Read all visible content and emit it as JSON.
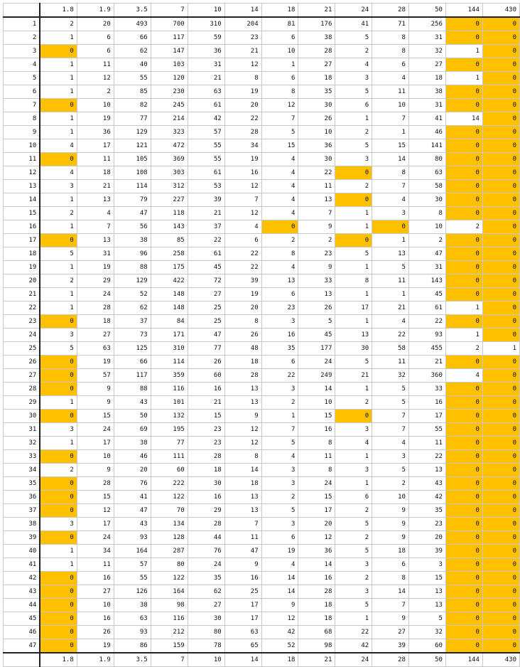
{
  "header": [
    "",
    "1.8",
    "1.9",
    "3.5",
    "7",
    "10",
    "14",
    "18",
    "21",
    "24",
    "28",
    "50",
    "144",
    "430"
  ],
  "footer": [
    "",
    "1.8",
    "1.9",
    "3.5",
    "7",
    "10",
    "14",
    "18",
    "21",
    "24",
    "28",
    "50",
    "144",
    "430"
  ],
  "highlight_color": "#ffc000",
  "rows": [
    {
      "label": "1",
      "values": [
        "2",
        "20",
        "493",
        "700",
        "310",
        "204",
        "81",
        "176",
        "41",
        "71",
        "256",
        "0",
        "0"
      ],
      "highlight": [
        11,
        12
      ]
    },
    {
      "label": "2",
      "values": [
        "1",
        "6",
        "66",
        "117",
        "59",
        "23",
        "6",
        "38",
        "5",
        "8",
        "31",
        "0",
        "0"
      ],
      "highlight": [
        11,
        12
      ]
    },
    {
      "label": "3",
      "values": [
        "0",
        "6",
        "62",
        "147",
        "36",
        "21",
        "10",
        "28",
        "2",
        "8",
        "32",
        "1",
        "0"
      ],
      "highlight": [
        0,
        12
      ]
    },
    {
      "label": "4",
      "values": [
        "1",
        "11",
        "40",
        "103",
        "31",
        "12",
        "1",
        "27",
        "4",
        "6",
        "27",
        "0",
        "0"
      ],
      "highlight": [
        11,
        12
      ]
    },
    {
      "label": "5",
      "values": [
        "1",
        "12",
        "55",
        "120",
        "21",
        "8",
        "6",
        "18",
        "3",
        "4",
        "18",
        "1",
        "0"
      ],
      "highlight": [
        12
      ]
    },
    {
      "label": "6",
      "values": [
        "1",
        "2",
        "85",
        "230",
        "63",
        "19",
        "8",
        "35",
        "5",
        "11",
        "38",
        "0",
        "0"
      ],
      "highlight": [
        11,
        12
      ]
    },
    {
      "label": "7",
      "values": [
        "0",
        "10",
        "82",
        "245",
        "61",
        "20",
        "12",
        "30",
        "6",
        "10",
        "31",
        "0",
        "0"
      ],
      "highlight": [
        0,
        11,
        12
      ]
    },
    {
      "label": "8",
      "values": [
        "1",
        "19",
        "77",
        "214",
        "42",
        "22",
        "7",
        "26",
        "1",
        "7",
        "41",
        "14",
        "0"
      ],
      "highlight": [
        12
      ]
    },
    {
      "label": "9",
      "values": [
        "1",
        "36",
        "129",
        "323",
        "57",
        "28",
        "5",
        "10",
        "2",
        "1",
        "46",
        "0",
        "0"
      ],
      "highlight": [
        11,
        12
      ]
    },
    {
      "label": "10",
      "values": [
        "4",
        "17",
        "121",
        "472",
        "55",
        "34",
        "15",
        "36",
        "5",
        "15",
        "141",
        "0",
        "0"
      ],
      "highlight": [
        11,
        12
      ]
    },
    {
      "label": "11",
      "values": [
        "0",
        "11",
        "105",
        "369",
        "55",
        "19",
        "4",
        "30",
        "3",
        "14",
        "80",
        "0",
        "0"
      ],
      "highlight": [
        0,
        11,
        12
      ]
    },
    {
      "label": "12",
      "values": [
        "4",
        "18",
        "108",
        "303",
        "61",
        "16",
        "4",
        "22",
        "0",
        "8",
        "63",
        "0",
        "0"
      ],
      "highlight": [
        8,
        11,
        12
      ]
    },
    {
      "label": "13",
      "values": [
        "3",
        "21",
        "114",
        "312",
        "53",
        "12",
        "4",
        "11",
        "2",
        "7",
        "58",
        "0",
        "0"
      ],
      "highlight": [
        11,
        12
      ]
    },
    {
      "label": "14",
      "values": [
        "1",
        "13",
        "79",
        "227",
        "39",
        "7",
        "4",
        "13",
        "0",
        "4",
        "30",
        "0",
        "0"
      ],
      "highlight": [
        8,
        11,
        12
      ]
    },
    {
      "label": "15",
      "values": [
        "2",
        "4",
        "47",
        "118",
        "21",
        "12",
        "4",
        "7",
        "1",
        "3",
        "8",
        "0",
        "0"
      ],
      "highlight": [
        11,
        12
      ]
    },
    {
      "label": "16",
      "values": [
        "1",
        "7",
        "56",
        "143",
        "37",
        "4",
        "0",
        "9",
        "1",
        "0",
        "10",
        "2",
        "0"
      ],
      "highlight": [
        6,
        9,
        12
      ]
    },
    {
      "label": "17",
      "values": [
        "0",
        "13",
        "38",
        "85",
        "22",
        "6",
        "2",
        "2",
        "0",
        "1",
        "2",
        "0",
        "0"
      ],
      "highlight": [
        0,
        8,
        11,
        12
      ]
    },
    {
      "label": "18",
      "values": [
        "5",
        "31",
        "96",
        "258",
        "61",
        "22",
        "8",
        "23",
        "5",
        "13",
        "47",
        "0",
        "0"
      ],
      "highlight": [
        11,
        12
      ]
    },
    {
      "label": "19",
      "values": [
        "1",
        "19",
        "88",
        "175",
        "45",
        "22",
        "4",
        "9",
        "1",
        "5",
        "31",
        "0",
        "0"
      ],
      "highlight": [
        11,
        12
      ]
    },
    {
      "label": "20",
      "values": [
        "2",
        "29",
        "129",
        "422",
        "72",
        "39",
        "13",
        "33",
        "8",
        "11",
        "143",
        "0",
        "0"
      ],
      "highlight": [
        11,
        12
      ]
    },
    {
      "label": "21",
      "values": [
        "1",
        "24",
        "52",
        "148",
        "27",
        "19",
        "6",
        "13",
        "1",
        "1",
        "45",
        "0",
        "0"
      ],
      "highlight": [
        11,
        12
      ]
    },
    {
      "label": "22",
      "values": [
        "1",
        "28",
        "62",
        "148",
        "25",
        "20",
        "23",
        "26",
        "17",
        "21",
        "61",
        "1",
        "0"
      ],
      "highlight": [
        12
      ]
    },
    {
      "label": "23",
      "values": [
        "0",
        "18",
        "37",
        "84",
        "25",
        "8",
        "3",
        "5",
        "1",
        "4",
        "22",
        "0",
        "0"
      ],
      "highlight": [
        0,
        11,
        12
      ]
    },
    {
      "label": "24",
      "values": [
        "3",
        "27",
        "73",
        "171",
        "47",
        "26",
        "16",
        "45",
        "13",
        "22",
        "93",
        "1",
        "0"
      ],
      "highlight": [
        12
      ]
    },
    {
      "label": "25",
      "values": [
        "5",
        "63",
        "125",
        "310",
        "77",
        "48",
        "35",
        "177",
        "30",
        "58",
        "455",
        "2",
        "1"
      ],
      "highlight": []
    },
    {
      "label": "26",
      "values": [
        "0",
        "19",
        "66",
        "114",
        "26",
        "18",
        "6",
        "24",
        "5",
        "11",
        "21",
        "0",
        "0"
      ],
      "highlight": [
        0,
        11,
        12
      ]
    },
    {
      "label": "27",
      "values": [
        "0",
        "57",
        "117",
        "359",
        "60",
        "28",
        "22",
        "249",
        "21",
        "32",
        "360",
        "4",
        "0"
      ],
      "highlight": [
        0,
        12
      ]
    },
    {
      "label": "28",
      "values": [
        "0",
        "9",
        "88",
        "116",
        "16",
        "13",
        "3",
        "14",
        "1",
        "5",
        "33",
        "0",
        "0"
      ],
      "highlight": [
        0,
        11,
        12
      ]
    },
    {
      "label": "29",
      "values": [
        "1",
        "9",
        "43",
        "101",
        "21",
        "13",
        "2",
        "10",
        "2",
        "5",
        "16",
        "0",
        "0"
      ],
      "highlight": [
        11,
        12
      ]
    },
    {
      "label": "30",
      "values": [
        "0",
        "15",
        "50",
        "132",
        "15",
        "9",
        "1",
        "15",
        "0",
        "7",
        "17",
        "0",
        "0"
      ],
      "highlight": [
        0,
        8,
        11,
        12
      ]
    },
    {
      "label": "31",
      "values": [
        "3",
        "24",
        "69",
        "195",
        "23",
        "12",
        "7",
        "16",
        "3",
        "7",
        "55",
        "0",
        "0"
      ],
      "highlight": [
        11,
        12
      ]
    },
    {
      "label": "32",
      "values": [
        "1",
        "17",
        "38",
        "77",
        "23",
        "12",
        "5",
        "8",
        "4",
        "4",
        "11",
        "0",
        "0"
      ],
      "highlight": [
        11,
        12
      ]
    },
    {
      "label": "33",
      "values": [
        "0",
        "10",
        "46",
        "111",
        "28",
        "8",
        "4",
        "11",
        "1",
        "3",
        "22",
        "0",
        "0"
      ],
      "highlight": [
        0,
        11,
        12
      ]
    },
    {
      "label": "34",
      "values": [
        "2",
        "9",
        "20",
        "60",
        "18",
        "14",
        "3",
        "8",
        "3",
        "5",
        "13",
        "0",
        "0"
      ],
      "highlight": [
        11,
        12
      ]
    },
    {
      "label": "35",
      "values": [
        "0",
        "28",
        "76",
        "222",
        "30",
        "18",
        "3",
        "24",
        "1",
        "2",
        "43",
        "0",
        "0"
      ],
      "highlight": [
        0,
        11,
        12
      ]
    },
    {
      "label": "36",
      "values": [
        "0",
        "15",
        "41",
        "122",
        "16",
        "13",
        "2",
        "15",
        "6",
        "10",
        "42",
        "0",
        "0"
      ],
      "highlight": [
        0,
        11,
        12
      ]
    },
    {
      "label": "37",
      "values": [
        "0",
        "12",
        "47",
        "70",
        "29",
        "13",
        "5",
        "17",
        "2",
        "9",
        "35",
        "0",
        "0"
      ],
      "highlight": [
        0,
        11,
        12
      ]
    },
    {
      "label": "38",
      "values": [
        "3",
        "17",
        "43",
        "134",
        "28",
        "7",
        "3",
        "20",
        "5",
        "9",
        "23",
        "0",
        "0"
      ],
      "highlight": [
        11,
        12
      ]
    },
    {
      "label": "39",
      "values": [
        "0",
        "24",
        "93",
        "128",
        "44",
        "11",
        "6",
        "12",
        "2",
        "9",
        "20",
        "0",
        "0"
      ],
      "highlight": [
        0,
        11,
        12
      ]
    },
    {
      "label": "40",
      "values": [
        "1",
        "34",
        "164",
        "287",
        "76",
        "47",
        "19",
        "36",
        "5",
        "18",
        "39",
        "0",
        "0"
      ],
      "highlight": [
        11,
        12
      ]
    },
    {
      "label": "41",
      "values": [
        "1",
        "11",
        "57",
        "80",
        "24",
        "9",
        "4",
        "14",
        "3",
        "6",
        "3",
        "0",
        "0"
      ],
      "highlight": [
        11,
        12
      ]
    },
    {
      "label": "42",
      "values": [
        "0",
        "16",
        "55",
        "122",
        "35",
        "16",
        "14",
        "16",
        "2",
        "8",
        "15",
        "0",
        "0"
      ],
      "highlight": [
        0,
        11,
        12
      ]
    },
    {
      "label": "43",
      "values": [
        "0",
        "27",
        "126",
        "164",
        "62",
        "25",
        "14",
        "28",
        "3",
        "14",
        "13",
        "0",
        "0"
      ],
      "highlight": [
        0,
        11,
        12
      ]
    },
    {
      "label": "44",
      "values": [
        "0",
        "10",
        "38",
        "98",
        "27",
        "17",
        "9",
        "18",
        "5",
        "7",
        "13",
        "0",
        "0"
      ],
      "highlight": [
        0,
        11,
        12
      ]
    },
    {
      "label": "45",
      "values": [
        "0",
        "16",
        "63",
        "116",
        "30",
        "17",
        "12",
        "18",
        "1",
        "9",
        "5",
        "0",
        "0"
      ],
      "highlight": [
        0,
        11,
        12
      ]
    },
    {
      "label": "46",
      "values": [
        "0",
        "26",
        "93",
        "212",
        "80",
        "63",
        "42",
        "68",
        "22",
        "27",
        "32",
        "0",
        "0"
      ],
      "highlight": [
        0,
        11,
        12
      ]
    },
    {
      "label": "47",
      "values": [
        "0",
        "19",
        "86",
        "159",
        "78",
        "65",
        "52",
        "98",
        "42",
        "39",
        "60",
        "0",
        "0"
      ],
      "highlight": [
        0,
        11,
        12
      ]
    }
  ]
}
